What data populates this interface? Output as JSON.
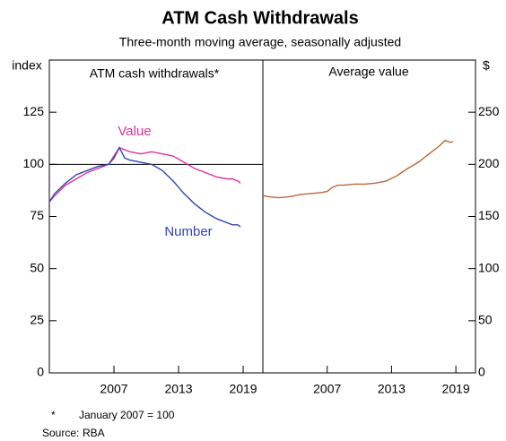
{
  "title": "ATM Cash Withdrawals",
  "subtitle": "Three-month moving average, seasonally adjusted",
  "footnote_marker": "*",
  "footnote": "January 2007 = 100",
  "source_label": "Source:",
  "source": "RBA",
  "chart_data": [
    {
      "type": "line",
      "title": "ATM cash withdrawals*",
      "ylabel": "index",
      "xlim": [
        2001,
        2020.83
      ],
      "xticks": [
        2007,
        2013,
        2019
      ],
      "ylim": [
        0,
        150
      ],
      "yticks": [
        0,
        25,
        50,
        75,
        100,
        125
      ],
      "hline": 100,
      "x": [
        2001,
        2001.5,
        2002.5,
        2003.5,
        2004.5,
        2005.5,
        2006.5,
        2007,
        2007.5,
        2008,
        2008.5,
        2009.5,
        2010.5,
        2011.5,
        2012.5,
        2013.5,
        2014.5,
        2015.5,
        2016.5,
        2017.5,
        2018,
        2018.5,
        2018.75
      ],
      "series": [
        {
          "name": "Value",
          "color": "#e0339a",
          "values": [
            82,
            85,
            90,
            93,
            96,
            98,
            100,
            104,
            108,
            107,
            106,
            105,
            106,
            105,
            104,
            101,
            98,
            96,
            94,
            93,
            93,
            92,
            91
          ]
        },
        {
          "name": "Number",
          "color": "#3344aa",
          "values": [
            82,
            86,
            91,
            95,
            97,
            99,
            100,
            103,
            108,
            103,
            102,
            101,
            100,
            97,
            92,
            86,
            81,
            77,
            74,
            72,
            71,
            71,
            70
          ]
        }
      ]
    },
    {
      "type": "line",
      "title": "Average value",
      "ylabel": "$",
      "xlim": [
        2001,
        2020.83
      ],
      "xticks": [
        2007,
        2013,
        2019
      ],
      "ylim": [
        0,
        300
      ],
      "yticks": [
        0,
        50,
        100,
        150,
        200,
        250
      ],
      "x": [
        2001,
        2001.5,
        2002.5,
        2003.5,
        2004.5,
        2005.5,
        2006.5,
        2007,
        2007.5,
        2008,
        2008.5,
        2009.5,
        2010.5,
        2011.5,
        2012.5,
        2013.5,
        2014.5,
        2015.5,
        2016.5,
        2017.5,
        2018,
        2018.5,
        2018.75
      ],
      "series": [
        {
          "name": "Average value",
          "color": "#b8683c",
          "values": [
            170,
            169,
            168,
            169,
            171,
            172,
            173,
            174,
            178,
            180,
            180,
            181,
            181,
            182,
            184,
            189,
            196,
            202,
            210,
            218,
            223,
            221,
            222
          ]
        }
      ]
    }
  ]
}
